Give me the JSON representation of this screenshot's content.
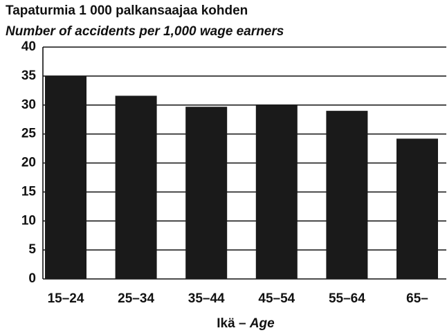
{
  "chart_data": {
    "type": "bar",
    "title": "Tapaturmia 1 000 palkansaajaa kohden",
    "subtitle": "Number of accidents per 1,000 wage earners",
    "xlabel": [
      "Ikä –",
      "Age"
    ],
    "categories": [
      "15–24",
      "25–34",
      "35–44",
      "45–54",
      "55–64",
      "65–"
    ],
    "values": [
      35,
      31.6,
      29.7,
      30.1,
      29.0,
      24.2
    ],
    "color": "#1a1a1a",
    "ylim": [
      0,
      40
    ],
    "yticks": [
      0,
      5,
      10,
      15,
      20,
      25,
      30,
      35,
      40
    ],
    "grid": true
  }
}
